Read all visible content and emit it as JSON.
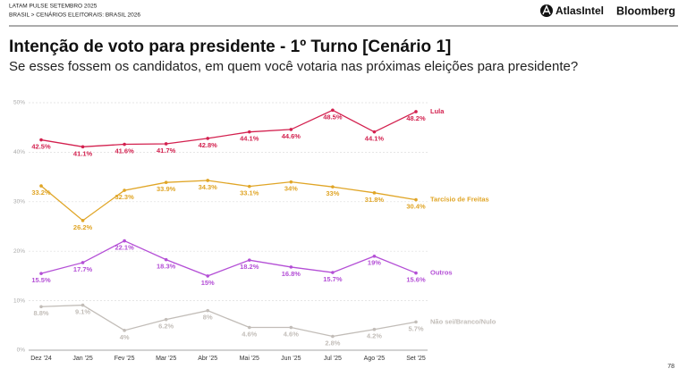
{
  "header": {
    "kicker": "LATAM PULSE SETEMBRO 2025",
    "breadcrumb": "BRASIL > CENÁRIOS ELEITORAIS: BRASIL 2026",
    "brand_1": "AtlasIntel",
    "brand_2": "Bloomberg"
  },
  "page_number": 78,
  "chart_data": {
    "type": "line",
    "title": "Intenção de voto para presidente - 1º Turno [Cenário 1]",
    "subtitle": "Se esses fossem os candidatos, em quem você votaria nas próximas eleições para presidente?",
    "categories": [
      "Dez '24",
      "Jan '25",
      "Fev '25",
      "Mar '25",
      "Abr '25",
      "Mai '25",
      "Jun '25",
      "Jul '25",
      "Ago '25",
      "Set '25"
    ],
    "ylim": [
      0,
      50
    ],
    "yticks": [
      {
        "value": 0,
        "label": "0%"
      },
      {
        "value": 10,
        "label": "10%"
      },
      {
        "value": 20,
        "label": "20%"
      },
      {
        "value": 30,
        "label": "30%"
      },
      {
        "value": 40,
        "label": "40%"
      },
      {
        "value": 50,
        "label": "50%"
      }
    ],
    "grid": true,
    "series": [
      {
        "name": "Lula",
        "color": "#d3214f",
        "values": [
          42.5,
          41.1,
          41.6,
          41.7,
          42.8,
          44.1,
          44.6,
          48.5,
          44.1,
          48.2
        ],
        "value_labels": [
          "42.5%",
          "41.1%",
          "41.6%",
          "41.7%",
          "42.8%",
          "44.1%",
          "44.6%",
          "48.5%",
          "44.1%",
          "48.2%"
        ]
      },
      {
        "name": "Tarcísio de Freitas",
        "color": "#e0a526",
        "values": [
          33.2,
          26.2,
          32.3,
          33.9,
          34.3,
          33.1,
          34,
          33,
          31.8,
          30.4
        ],
        "value_labels": [
          "33.2%",
          "26.2%",
          "32.3%",
          "33.9%",
          "34.3%",
          "33.1%",
          "34%",
          "33%",
          "31.8%",
          "30.4%"
        ]
      },
      {
        "name": "Outros",
        "color": "#b44fd6",
        "values": [
          15.5,
          17.7,
          22.1,
          18.3,
          15,
          18.2,
          16.8,
          15.7,
          19,
          15.6
        ],
        "value_labels": [
          "15.5%",
          "17.7%",
          "22.1%",
          "18.3%",
          "15%",
          "18.2%",
          "16.8%",
          "15.7%",
          "19%",
          "15.6%"
        ]
      },
      {
        "name": "Não sei/Branco/Nulo",
        "color": "#c2bdb8",
        "values": [
          8.8,
          9.1,
          4,
          6.2,
          8,
          4.6,
          4.6,
          2.8,
          4.2,
          5.7
        ],
        "value_labels": [
          "8.8%",
          "9.1%",
          "4%",
          "6.2%",
          "8%",
          "4.6%",
          "4.6%",
          "2.8%",
          "4.2%",
          "5.7%"
        ]
      }
    ]
  }
}
